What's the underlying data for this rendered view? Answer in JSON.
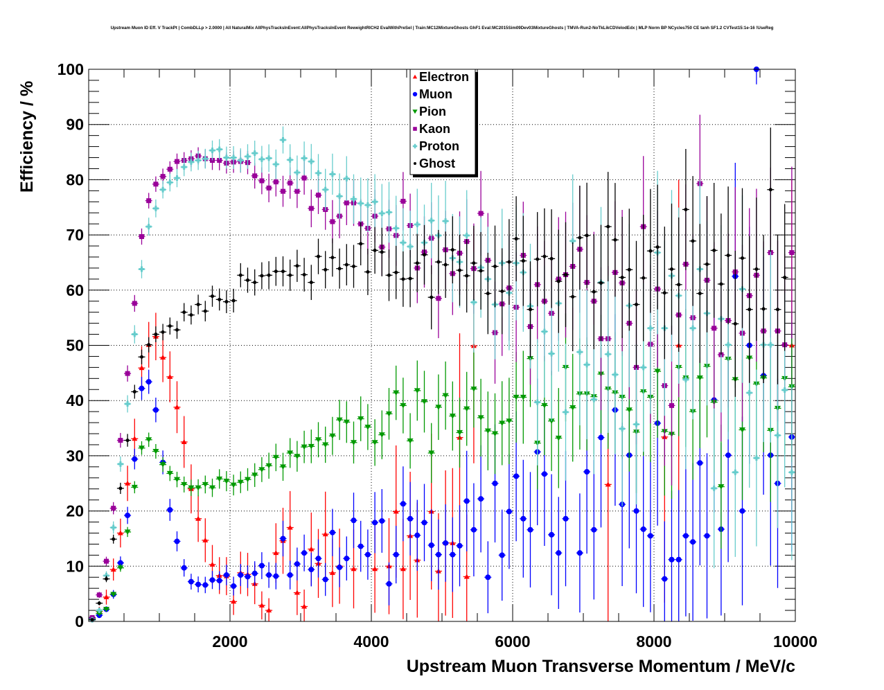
{
  "chart_data": {
    "type": "scatter",
    "title": "Upstream Muon ID Eff. V TrackPt | CombDLLp > 2.0000 | All NaturalMix AllPhysTracksInEvent:AllPhysTracksInEvent ReweightRICH2 EvalWithPreSel | Train:MC12MixtureGhosts GhF1 Eval:MC2015Sim09Dev03MixtureGhosts | TMVA-Run2-NoTkLikCDVelodEdx | MLP Norm BP NCycles750 CE tanh SF1.2 CVTest15:1e-16 !UseReg",
    "xlabel": "Upstream Muon Transverse Momentum / MeV/c",
    "ylabel": "Efficiency / %",
    "xlim": [
      0,
      10000
    ],
    "ylim": [
      0,
      100
    ],
    "x_ticks": [
      "2000",
      "4000",
      "6000",
      "8000",
      "10000"
    ],
    "x_tick_values": [
      2000,
      4000,
      6000,
      8000,
      10000
    ],
    "y_ticks": [
      "0",
      "10",
      "20",
      "30",
      "40",
      "50",
      "60",
      "70",
      "80",
      "90",
      "100"
    ],
    "y_tick_values": [
      0,
      10,
      20,
      30,
      40,
      50,
      60,
      70,
      80,
      90,
      100
    ],
    "grid": true,
    "legend_position": "top-center",
    "bin_start": 50,
    "bin_width": 100,
    "series": [
      {
        "name": "Electron",
        "color": "#ff0000",
        "marker": "triangle-up",
        "err_scale": 3.0,
        "values": [
          0.5,
          1.8,
          4.4,
          9.4,
          16.0,
          25.0,
          33.1,
          45.9,
          50.1,
          51.6,
          47.8,
          44.3,
          38.8,
          32.5,
          24.0,
          18.6,
          14.7,
          10.3,
          8.3,
          8.2,
          3.6,
          8.8,
          8.5,
          6.8,
          2.9,
          2.0,
          12.4,
          14.6,
          17.0,
          5.2,
          2.7,
          13.1,
          10.5,
          15.8,
          8.8,
          10.0,
          null,
          9.5,
          null,
          null,
          9.5,
          null,
          10.0,
          19.9,
          9.5,
          15.5,
          11.1,
          null,
          19.9,
          9.1,
          14.2,
          14.2,
          33.3,
          8.1,
          49.9,
          null,
          null,
          null,
          null,
          null,
          null,
          null,
          null,
          null,
          null,
          null,
          null,
          null,
          null,
          null,
          null,
          null,
          null,
          24.8,
          null,
          null,
          null,
          null,
          null,
          null,
          null,
          33.4,
          null,
          50.0,
          null,
          null,
          null,
          null,
          null,
          null,
          null,
          null,
          null,
          null,
          null,
          null,
          null,
          null,
          null,
          50.0
        ]
      },
      {
        "name": "Muon",
        "color": "#0000ff",
        "marker": "circle",
        "err_scale": 1.6,
        "values": [
          0.5,
          1.1,
          2.2,
          4.9,
          10.6,
          19.2,
          29.4,
          42.2,
          43.4,
          38.3,
          28.8,
          20.2,
          14.5,
          9.7,
          7.2,
          6.7,
          6.6,
          7.5,
          7.4,
          8.4,
          6.4,
          8.4,
          8.1,
          8.7,
          10.1,
          8.4,
          8.2,
          15.0,
          8.4,
          10.4,
          12.4,
          9.4,
          11.4,
          7.6,
          16.1,
          9.8,
          11.4,
          18.3,
          13.6,
          12.1,
          17.9,
          18.2,
          6.8,
          12.1,
          21.3,
          18.6,
          15.6,
          17.9,
          13.8,
          12.1,
          14.2,
          12.1,
          13.7,
          21.8,
          16.6,
          22.2,
          8.0,
          25.0,
          12.0,
          19.9,
          26.3,
          18.6,
          16.6,
          30.7,
          26.7,
          15.7,
          12.4,
          18.6,
          null,
          12.4,
          27.1,
          16.6,
          33.3,
          null,
          38.3,
          21.2,
          30.1,
          20.0,
          16.7,
          15.5,
          35.9,
          7.7,
          11.2,
          11.2,
          15.5,
          14.4,
          28.7,
          15.5,
          40.1,
          16.7,
          30.1,
          62.5,
          20.0,
          50.0,
          100.0,
          44.5,
          30.1,
          25.0,
          null,
          33.4
        ]
      },
      {
        "name": "Pion",
        "color": "#009900",
        "marker": "triangle-down",
        "err_scale": 1.0,
        "values": [
          0.4,
          1.4,
          2.2,
          4.9,
          9.7,
          16.2,
          24.3,
          31.4,
          32.9,
          30.8,
          28.4,
          26.8,
          25.7,
          24.8,
          24.2,
          24.2,
          24.8,
          24.2,
          25.8,
          25.4,
          24.7,
          25.2,
          25.7,
          26.5,
          27.5,
          28.2,
          29.7,
          28.0,
          30.5,
          29.9,
          31.6,
          31.7,
          32.9,
          32.0,
          33.6,
          36.5,
          36.1,
          32.4,
          36.7,
          35.2,
          32.4,
          33.8,
          37.6,
          41.4,
          39.1,
          32.7,
          41.8,
          39.8,
          30.5,
          38.8,
          40.9,
          37.2,
          34.2,
          38.5,
          42.1,
          36.9,
          34.5,
          34.0,
          35.9,
          36.3,
          40.6,
          40.6,
          47.6,
          32.3,
          39.1,
          36.3,
          33.2,
          46.0,
          38.7,
          41.2,
          41.2,
          40.7,
          44.8,
          42.1,
          41.4,
          40.6,
          38.3,
          34.3,
          41.6,
          40.6,
          45.3,
          34.4,
          33.9,
          46.0,
          44.1,
          38.0,
          44.1,
          46.2,
          39.7,
          24.4,
          47.5,
          43.8,
          34.7,
          47.7,
          43.0,
          44.1,
          34.6,
          38.6,
          44.0,
          42.5
        ]
      },
      {
        "name": "Kaon",
        "color": "#990099",
        "marker": "square",
        "err_scale": 1.2,
        "values": [
          0.7,
          4.8,
          10.9,
          20.5,
          32.8,
          44.9,
          57.6,
          69.7,
          76.2,
          79.2,
          80.6,
          81.9,
          83.3,
          83.5,
          83.8,
          84.3,
          83.8,
          83.5,
          83.5,
          83.0,
          83.2,
          83.3,
          83.1,
          80.7,
          79.8,
          78.5,
          79.6,
          77.9,
          79.4,
          77.9,
          80.3,
          74.8,
          77.2,
          74.6,
          72.4,
          73.4,
          75.8,
          75.8,
          72.0,
          71.2,
          73.4,
          67.8,
          71.1,
          69.9,
          76.1,
          71.7,
          64.0,
          66.9,
          69.4,
          58.5,
          67.3,
          63.0,
          66.7,
          68.8,
          63.9,
          73.9,
          65.4,
          52.3,
          57.5,
          60.4,
          56.9,
          66.3,
          53.4,
          61.0,
          58.0,
          55.8,
          62.0,
          62.8,
          64.3,
          67.4,
          61.4,
          58.0,
          51.2,
          51.2,
          63.2,
          61.3,
          54.0,
          46.0,
          71.5,
          50.2,
          60.2,
          42.7,
          39.1,
          55.5,
          64.7,
          55.0,
          79.3,
          61.8,
          53.1,
          48.3,
          54.5,
          63.3,
          52.2,
          59.0,
          62.7,
          52.6,
          66.8,
          52.6,
          50.1,
          66.8
        ]
      },
      {
        "name": "Proton",
        "color": "#66cccc",
        "marker": "cross",
        "err_scale": 1.3,
        "values": [
          0.3,
          2.0,
          8.3,
          17.0,
          28.5,
          39.4,
          52.0,
          63.8,
          71.5,
          74.8,
          78.2,
          79.5,
          80.3,
          82.3,
          83.2,
          83.5,
          83.8,
          85.3,
          85.5,
          84.0,
          84.0,
          83.5,
          84.2,
          84.8,
          83.7,
          83.9,
          82.8,
          87.2,
          83.6,
          81.3,
          83.9,
          83.3,
          81.2,
          78.2,
          81.0,
          77.0,
          80.2,
          76.5,
          75.7,
          75.4,
          76.0,
          73.9,
          74.1,
          71.2,
          68.6,
          67.9,
          71.9,
          68.6,
          72.6,
          69.9,
          72.5,
          65.8,
          65.1,
          69.9,
          57.8,
          64.1,
          62.0,
          57.4,
          64.9,
          59.5,
          64.9,
          63.2,
          57.1,
          39.7,
          52.5,
          48.5,
          57.6,
          37.9,
          68.9,
          48.8,
          46.5,
          40.2,
          61.4,
          48.4,
          44.7,
          34.9,
          57.2,
          35.7,
          46.0,
          53.1,
          66.8,
          53.1,
          62.6,
          59.0,
          43.8,
          53.1,
          63.8,
          55.8,
          24.1,
          54.8,
          50.1,
          27.0,
          60.2,
          41.4,
          29.6,
          50.1,
          50.1,
          33.7,
          41.9,
          27.0
        ]
      },
      {
        "name": "Ghost",
        "color": "#000000",
        "marker": "dot",
        "err_scale": 1.0,
        "values": [
          0.3,
          3.3,
          7.7,
          14.9,
          24.1,
          32.8,
          41.6,
          47.9,
          50.1,
          52.0,
          52.4,
          53.5,
          52.8,
          56.0,
          55.5,
          57.4,
          56.2,
          58.9,
          58.3,
          57.9,
          58.1,
          62.7,
          61.8,
          61.4,
          62.6,
          62.7,
          63.4,
          63.4,
          62.7,
          64.4,
          62.8,
          61.4,
          66.1,
          63.7,
          65.9,
          63.9,
          64.6,
          64.3,
          68.4,
          63.3,
          67.2,
          66.9,
          62.7,
          63.2,
          62.0,
          62.1,
          64.9,
          66.4,
          58.7,
          65.1,
          64.6,
          67.3,
          63.6,
          62.6,
          64.9,
          63.5,
          59.4,
          64.3,
          59.8,
          65.1,
          69.3,
          65.3,
          56.5,
          65.6,
          66.1,
          65.7,
          61.6,
          62.8,
          58.8,
          69.5,
          69.9,
          59.7,
          61.3,
          71.5,
          69.1,
          62.3,
          63.7,
          57.4,
          62.2,
          67.1,
          67.8,
          59.5,
          63.8,
          61.0,
          74.6,
          68.9,
          59.4,
          64.7,
          67.2,
          61.1,
          66.3,
          53.9,
          65.8,
          56.5,
          63.8,
          56.6,
          78.2,
          56.5,
          62.3,
          null
        ]
      }
    ]
  }
}
